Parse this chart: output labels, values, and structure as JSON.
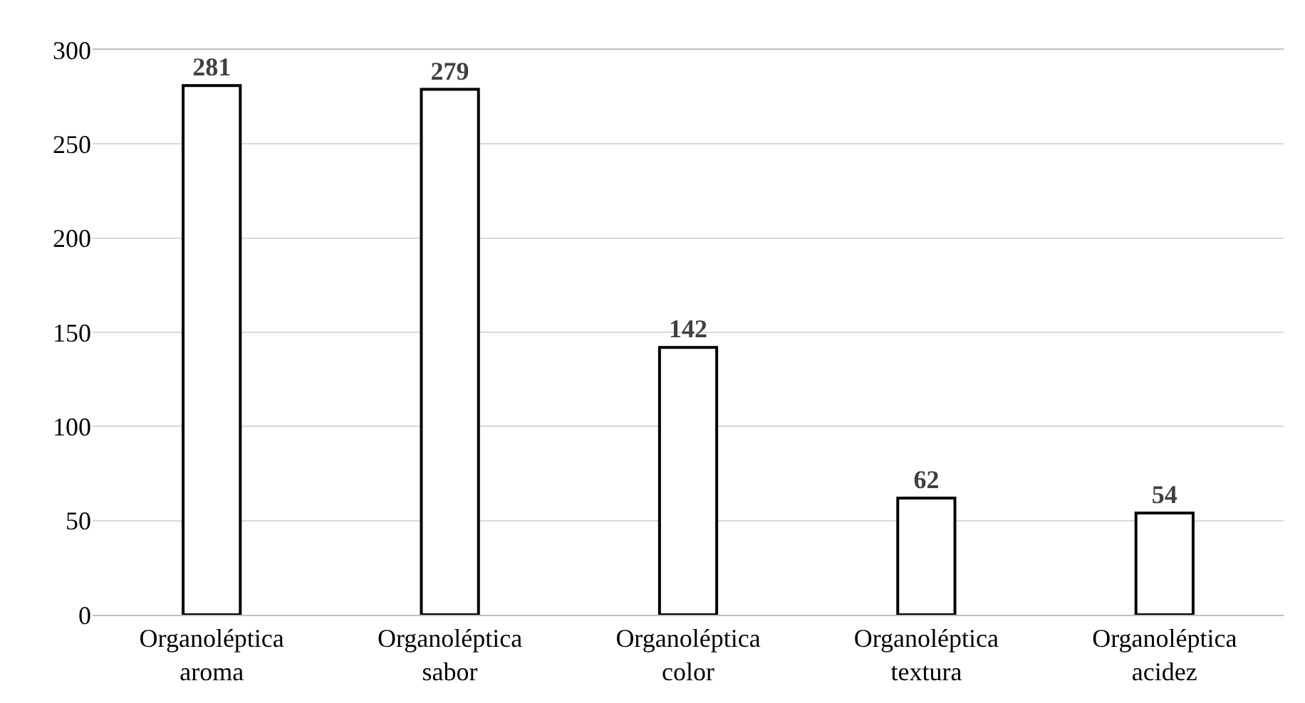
{
  "chart_data": {
    "type": "bar",
    "categories": [
      "Organoléptica aroma",
      "Organoléptica sabor",
      "Organoléptica color",
      "Organoléptica textura",
      "Organoléptica acidez"
    ],
    "values": [
      281,
      279,
      142,
      62,
      54
    ],
    "color": "#ffffff",
    "ylim": [
      0,
      300
    ],
    "yticks": [
      0,
      50,
      100,
      150,
      200,
      250,
      300
    ],
    "grid": "y",
    "data_labels": true
  }
}
